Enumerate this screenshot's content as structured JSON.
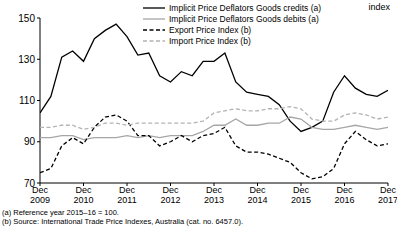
{
  "chart_data": {
    "type": "line",
    "y_label": "index",
    "footnotes": [
      "(a) Reference year 2015–16 = 100.",
      "(b) Source: International Trade Price Indexes, Australia (cat. no. 6457.0)."
    ],
    "categories": [
      "Dec 2009",
      null,
      null,
      null,
      "Dec 2010",
      null,
      null,
      null,
      "Dec 2011",
      null,
      null,
      null,
      "Dec 2012",
      null,
      null,
      null,
      "Dec 2013",
      null,
      null,
      null,
      "Dec 2014",
      null,
      null,
      null,
      "Dec 2015",
      null,
      null,
      null,
      "Dec 2016",
      null,
      null,
      null,
      "Dec 2017"
    ],
    "series": [
      {
        "name": "Implicit Price Deflators Goods credits (a)",
        "color": "#000000",
        "line_style": "solid",
        "values": [
          104,
          112,
          131,
          134,
          129,
          140,
          144,
          147,
          141,
          132,
          133,
          122,
          119,
          124,
          122,
          129,
          129,
          133,
          119,
          114,
          113,
          112,
          108,
          100,
          95,
          97,
          100,
          114,
          122,
          116,
          113,
          112,
          115
        ]
      },
      {
        "name": "Implicit Price Deflators Goods debits (a)",
        "color": "#a6a6a6",
        "line_style": "solid",
        "values": [
          92,
          92,
          93,
          93,
          91,
          92,
          92,
          92,
          93,
          92,
          93,
          92,
          93,
          93,
          93,
          95,
          98,
          98,
          101,
          98,
          98,
          99,
          99,
          102,
          101,
          97,
          96,
          96,
          97,
          98,
          97,
          96,
          97
        ]
      },
      {
        "name": "Export Price Index (b)",
        "color": "#000000",
        "line_style": "dashed",
        "values": [
          75,
          77,
          88,
          92,
          89,
          97,
          102,
          103,
          100,
          93,
          93,
          88,
          90,
          93,
          90,
          93,
          94,
          97,
          88,
          85,
          85,
          84,
          82,
          80,
          75,
          72,
          73,
          77,
          89,
          95,
          91,
          88,
          89
        ]
      },
      {
        "name": "Import Price Index (b)",
        "color": "#b3b3b3",
        "line_style": "dashed",
        "values": [
          97,
          97,
          98,
          98,
          96,
          97,
          99,
          99,
          98,
          99,
          99,
          99,
          99,
          99,
          99,
          100,
          104,
          105,
          106,
          105,
          105,
          106,
          106,
          107,
          106,
          101,
          100,
          100,
          103,
          104,
          103,
          101,
          102
        ]
      }
    ],
    "ylim": [
      70,
      150
    ],
    "yticks": [
      70,
      90,
      110,
      130,
      150
    ],
    "grid": false,
    "legend": "top"
  }
}
